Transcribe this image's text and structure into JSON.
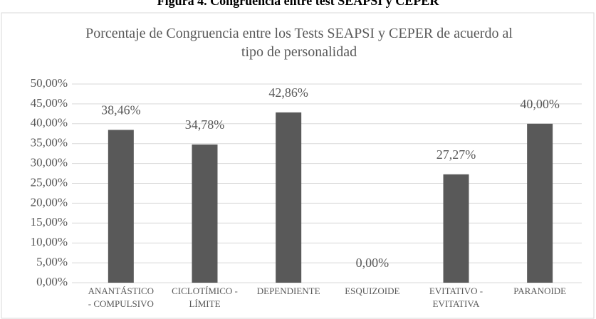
{
  "figure_caption": "Figura 4. Congruencia entre test SEAPSI y CEPER",
  "chart_data": {
    "type": "bar",
    "title": "Porcentaje de Congruencia entre los Tests SEAPSI y CEPER de acuerdo al tipo de personalidad",
    "categories": [
      [
        "ANANTÁSTICO",
        "- COMPULSIVO"
      ],
      [
        "CICLOTÍMICO -",
        "LÍMITE"
      ],
      [
        "DEPENDIENTE"
      ],
      [
        "ESQUIZOIDE"
      ],
      [
        "EVITATIVO -",
        "EVITATIVA"
      ],
      [
        "PARANOIDE"
      ]
    ],
    "values": [
      38.46,
      34.78,
      42.86,
      0,
      27.27,
      40
    ],
    "value_labels": [
      "38,46%",
      "34,78%",
      "42,86%",
      "0,00%",
      "27,27%",
      "40,00%"
    ],
    "color": "#595959",
    "ylim": [
      0,
      50
    ],
    "yticks": [
      {
        "value": 0,
        "label": "0,00%"
      },
      {
        "value": 5,
        "label": "5,00%"
      },
      {
        "value": 10,
        "label": "10,00%"
      },
      {
        "value": 15,
        "label": "15,00%"
      },
      {
        "value": 20,
        "label": "20,00%"
      },
      {
        "value": 25,
        "label": "25,00%"
      },
      {
        "value": 30,
        "label": "30,00%"
      },
      {
        "value": 35,
        "label": "35,00%"
      },
      {
        "value": 40,
        "label": "40,00%"
      },
      {
        "value": 45,
        "label": "45,00%"
      },
      {
        "value": 50,
        "label": "50,00%"
      }
    ],
    "grid": true
  }
}
